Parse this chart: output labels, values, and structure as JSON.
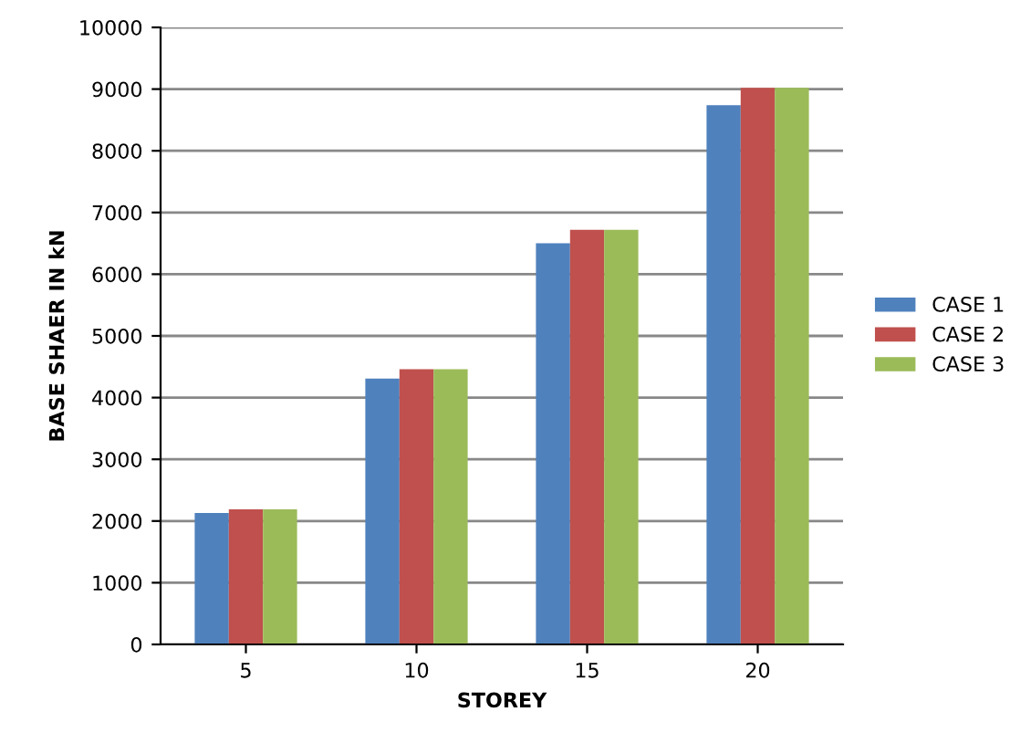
{
  "chart_data": {
    "type": "bar",
    "xlabel": "STOREY",
    "ylabel": "BASE SHAER IN kN",
    "categories": [
      "5",
      "10",
      "15",
      "20"
    ],
    "series": [
      {
        "name": "CASE 1",
        "color": "#4f81bd",
        "values": [
          2130,
          4310,
          6500,
          8740
        ]
      },
      {
        "name": "CASE 2",
        "color": "#c0504d",
        "values": [
          2190,
          4460,
          6720,
          9020
        ]
      },
      {
        "name": "CASE 3",
        "color": "#9bbb59",
        "values": [
          2190,
          4460,
          6720,
          9020
        ]
      }
    ],
    "ylim": [
      0,
      10000
    ],
    "yticks": [
      0,
      1000,
      2000,
      3000,
      4000,
      5000,
      6000,
      7000,
      8000,
      9000,
      10000
    ],
    "grid": "y",
    "legend": "right"
  }
}
